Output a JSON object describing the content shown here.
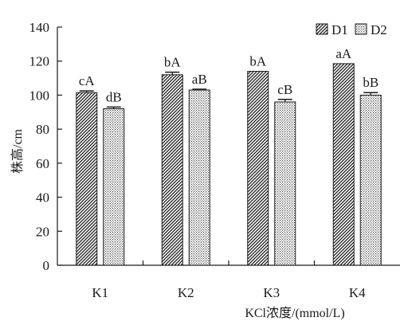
{
  "chart_data": {
    "type": "bar",
    "categories": [
      "K1",
      "K2",
      "K3",
      "K4"
    ],
    "series": [
      {
        "name": "D1",
        "values": [
          101.5,
          112,
          114,
          118.5
        ],
        "errors": [
          1,
          1.5,
          0,
          0
        ],
        "labels": [
          "cA",
          "bA",
          "bA",
          "aA"
        ]
      },
      {
        "name": "D2",
        "values": [
          92,
          103,
          96,
          100
        ],
        "errors": [
          1,
          0.5,
          1.5,
          1.5
        ],
        "labels": [
          "dB",
          "aB",
          "cB",
          "bB"
        ]
      }
    ],
    "title": "",
    "xlabel": "KCl浓度/(mmol/L)",
    "ylabel": "株高/cm",
    "ylim": [
      0,
      140
    ],
    "yticks": [
      0,
      20,
      40,
      60,
      80,
      100,
      120,
      140
    ],
    "legend_position": "top-right",
    "grid": false,
    "colors": {
      "axis": "#1a1a1a",
      "bar_stroke": "#1a1a1a",
      "ylabel": "#b5614a"
    }
  }
}
